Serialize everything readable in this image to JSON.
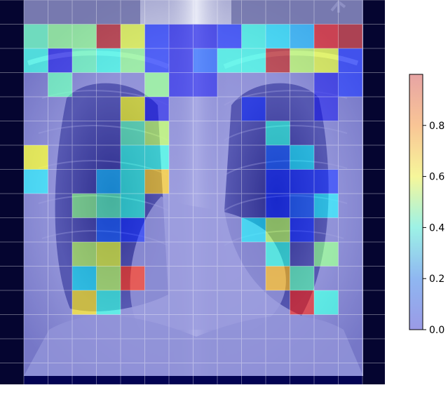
{
  "image": {
    "subject": "frontal chest x-ray with patch attention heatmap overlay",
    "overlay_colormap": "jet",
    "grid_color": "#ffffff",
    "background_color": "#050530",
    "patch_grid": {
      "rows": 15,
      "cols": 14
    },
    "patch_values": [
      [
        0.45,
        0.5,
        0.5,
        0.95,
        0.6,
        0.15,
        0.1,
        0.1,
        0.15,
        0.4,
        0.35,
        0.3,
        0.9,
        0.95
      ],
      [
        0.4,
        0.1,
        0.45,
        0.4,
        0.5,
        0.15,
        0.1,
        0.2,
        0.4,
        0.4,
        0.95,
        0.55,
        0.6,
        0.15
      ],
      [
        0.05,
        0.45,
        0.05,
        0.05,
        0.05,
        0.5,
        0.1,
        0.1,
        0.05,
        0.05,
        0.05,
        0.05,
        0.1,
        0.15
      ],
      [
        0.05,
        0.05,
        0.05,
        0.05,
        0.62,
        0.1,
        0.05,
        0.05,
        0.05,
        0.15,
        0.05,
        0.05,
        0.1,
        0.05
      ],
      [
        0.05,
        0.05,
        0.05,
        0.05,
        0.45,
        0.55,
        0.05,
        0.05,
        0.05,
        0.05,
        0.4,
        0.05,
        0.05,
        0.05
      ],
      [
        0.62,
        0.05,
        0.05,
        0.05,
        0.4,
        0.4,
        0.05,
        0.05,
        0.05,
        0.05,
        0.2,
        0.35,
        0.05,
        0.05
      ],
      [
        0.35,
        0.05,
        0.05,
        0.3,
        0.4,
        0.68,
        0.05,
        0.05,
        0.05,
        0.05,
        0.15,
        0.15,
        0.15,
        0.05
      ],
      [
        0.05,
        0.05,
        0.5,
        0.45,
        0.4,
        0.05,
        0.05,
        0.05,
        0.05,
        0.05,
        0.15,
        0.2,
        0.35,
        0.05
      ],
      [
        0.05,
        0.05,
        0.05,
        0.2,
        0.15,
        0.05,
        0.05,
        0.05,
        0.05,
        0.35,
        0.55,
        0.15,
        0.05,
        0.05
      ],
      [
        0.05,
        0.05,
        0.55,
        0.6,
        0.05,
        0.05,
        0.05,
        0.05,
        0.05,
        0.05,
        0.4,
        0.05,
        0.5,
        0.05
      ],
      [
        0.05,
        0.05,
        0.35,
        0.55,
        0.85,
        0.05,
        0.05,
        0.05,
        0.05,
        0.05,
        0.7,
        0.45,
        0.05,
        0.05
      ],
      [
        0.05,
        0.05,
        0.65,
        0.4,
        0.05,
        0.05,
        0.05,
        0.05,
        0.05,
        0.05,
        0.05,
        0.9,
        0.4,
        0.05
      ],
      [
        0.05,
        0.05,
        0.05,
        0.05,
        0.05,
        0.05,
        0.05,
        0.05,
        0.05,
        0.05,
        0.05,
        0.05,
        0.05,
        0.05
      ],
      [
        0.05,
        0.05,
        0.05,
        0.05,
        0.05,
        0.05,
        0.05,
        0.05,
        0.05,
        0.05,
        0.05,
        0.05,
        0.05,
        0.05
      ],
      [
        0.05,
        0.05,
        0.05,
        0.05,
        0.05,
        0.05,
        0.05,
        0.05,
        0.05,
        0.05,
        0.05,
        0.05,
        0.05,
        0.05
      ]
    ]
  },
  "colorbar": {
    "ticks": [
      "0.0",
      "0.2",
      "0.4",
      "0.6",
      "0.8"
    ],
    "tick_values": [
      0.0,
      0.2,
      0.4,
      0.6,
      0.8
    ],
    "range": [
      0.0,
      1.0
    ]
  }
}
